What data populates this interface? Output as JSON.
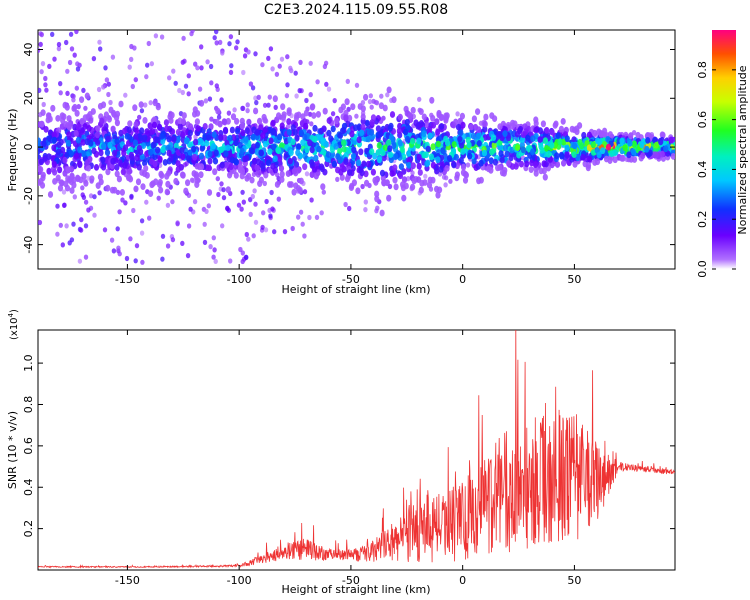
{
  "title": "C2E3.2024.115.09.55.R08",
  "chart_data": [
    {
      "type": "heatmap",
      "name": "spectrogram",
      "xlabel": "Height of straight line (km)",
      "ylabel": "Frequency (Hz)",
      "xlim": [
        -190,
        95
      ],
      "ylim": [
        -50,
        48
      ],
      "xticks": [
        -150,
        -100,
        -50,
        0,
        50
      ],
      "yticks": [
        -40,
        -20,
        0,
        20,
        40
      ],
      "colorbar": {
        "label": "Normalized spectral amplitude",
        "ticks": [
          0.0,
          0.2,
          0.4,
          0.6,
          0.8
        ],
        "range": [
          0,
          0.96
        ]
      },
      "description_points": [
        {
          "height": -190,
          "band_halfwidth_hz": 12,
          "peak_amp": 0.35
        },
        {
          "height": -100,
          "band_halfwidth_hz": 10,
          "peak_amp": 0.45
        },
        {
          "height": -50,
          "band_halfwidth_hz": 12,
          "peak_amp": 0.55
        },
        {
          "height": -30,
          "band_halfwidth_hz": 14,
          "peak_amp": 0.5
        },
        {
          "height": 0,
          "band_halfwidth_hz": 9,
          "peak_amp": 0.6
        },
        {
          "height": 40,
          "band_halfwidth_hz": 7,
          "peak_amp": 0.65
        },
        {
          "height": 65,
          "band_halfwidth_hz": 4,
          "peak_amp": 0.9
        },
        {
          "height": 95,
          "band_halfwidth_hz": 3,
          "peak_amp": 0.7
        }
      ]
    },
    {
      "type": "line",
      "name": "snr",
      "xlabel": "Height of straight line (km)",
      "ylabel": "SNR (10 * v/v)",
      "yscale_label": "(x10",
      "yscale_exp": "4",
      "yscale_close": ")",
      "xlim": [
        -190,
        95
      ],
      "ylim": [
        0,
        1.16
      ],
      "xticks": [
        -150,
        -100,
        -50,
        0,
        50
      ],
      "yticks": [
        0.2,
        0.4,
        0.6,
        0.8,
        1.0
      ],
      "color": "#ee3333",
      "series": [
        {
          "name": "SNR",
          "x": [
            -190,
            -150,
            -120,
            -100,
            -90,
            -80,
            -70,
            -60,
            -50,
            -40,
            -30,
            -20,
            -10,
            0,
            10,
            20,
            30,
            40,
            50,
            60,
            70,
            80,
            95
          ],
          "y_base": [
            0.015,
            0.015,
            0.017,
            0.02,
            0.05,
            0.09,
            0.1,
            0.07,
            0.07,
            0.09,
            0.14,
            0.2,
            0.2,
            0.24,
            0.32,
            0.38,
            0.42,
            0.44,
            0.45,
            0.42,
            0.5,
            0.49,
            0.47
          ],
          "y_spread": [
            0.005,
            0.005,
            0.006,
            0.01,
            0.04,
            0.08,
            0.09,
            0.06,
            0.05,
            0.1,
            0.18,
            0.3,
            0.32,
            0.36,
            0.45,
            0.55,
            0.6,
            0.55,
            0.58,
            0.35,
            0.04,
            0.025,
            0.02
          ]
        }
      ]
    }
  ]
}
